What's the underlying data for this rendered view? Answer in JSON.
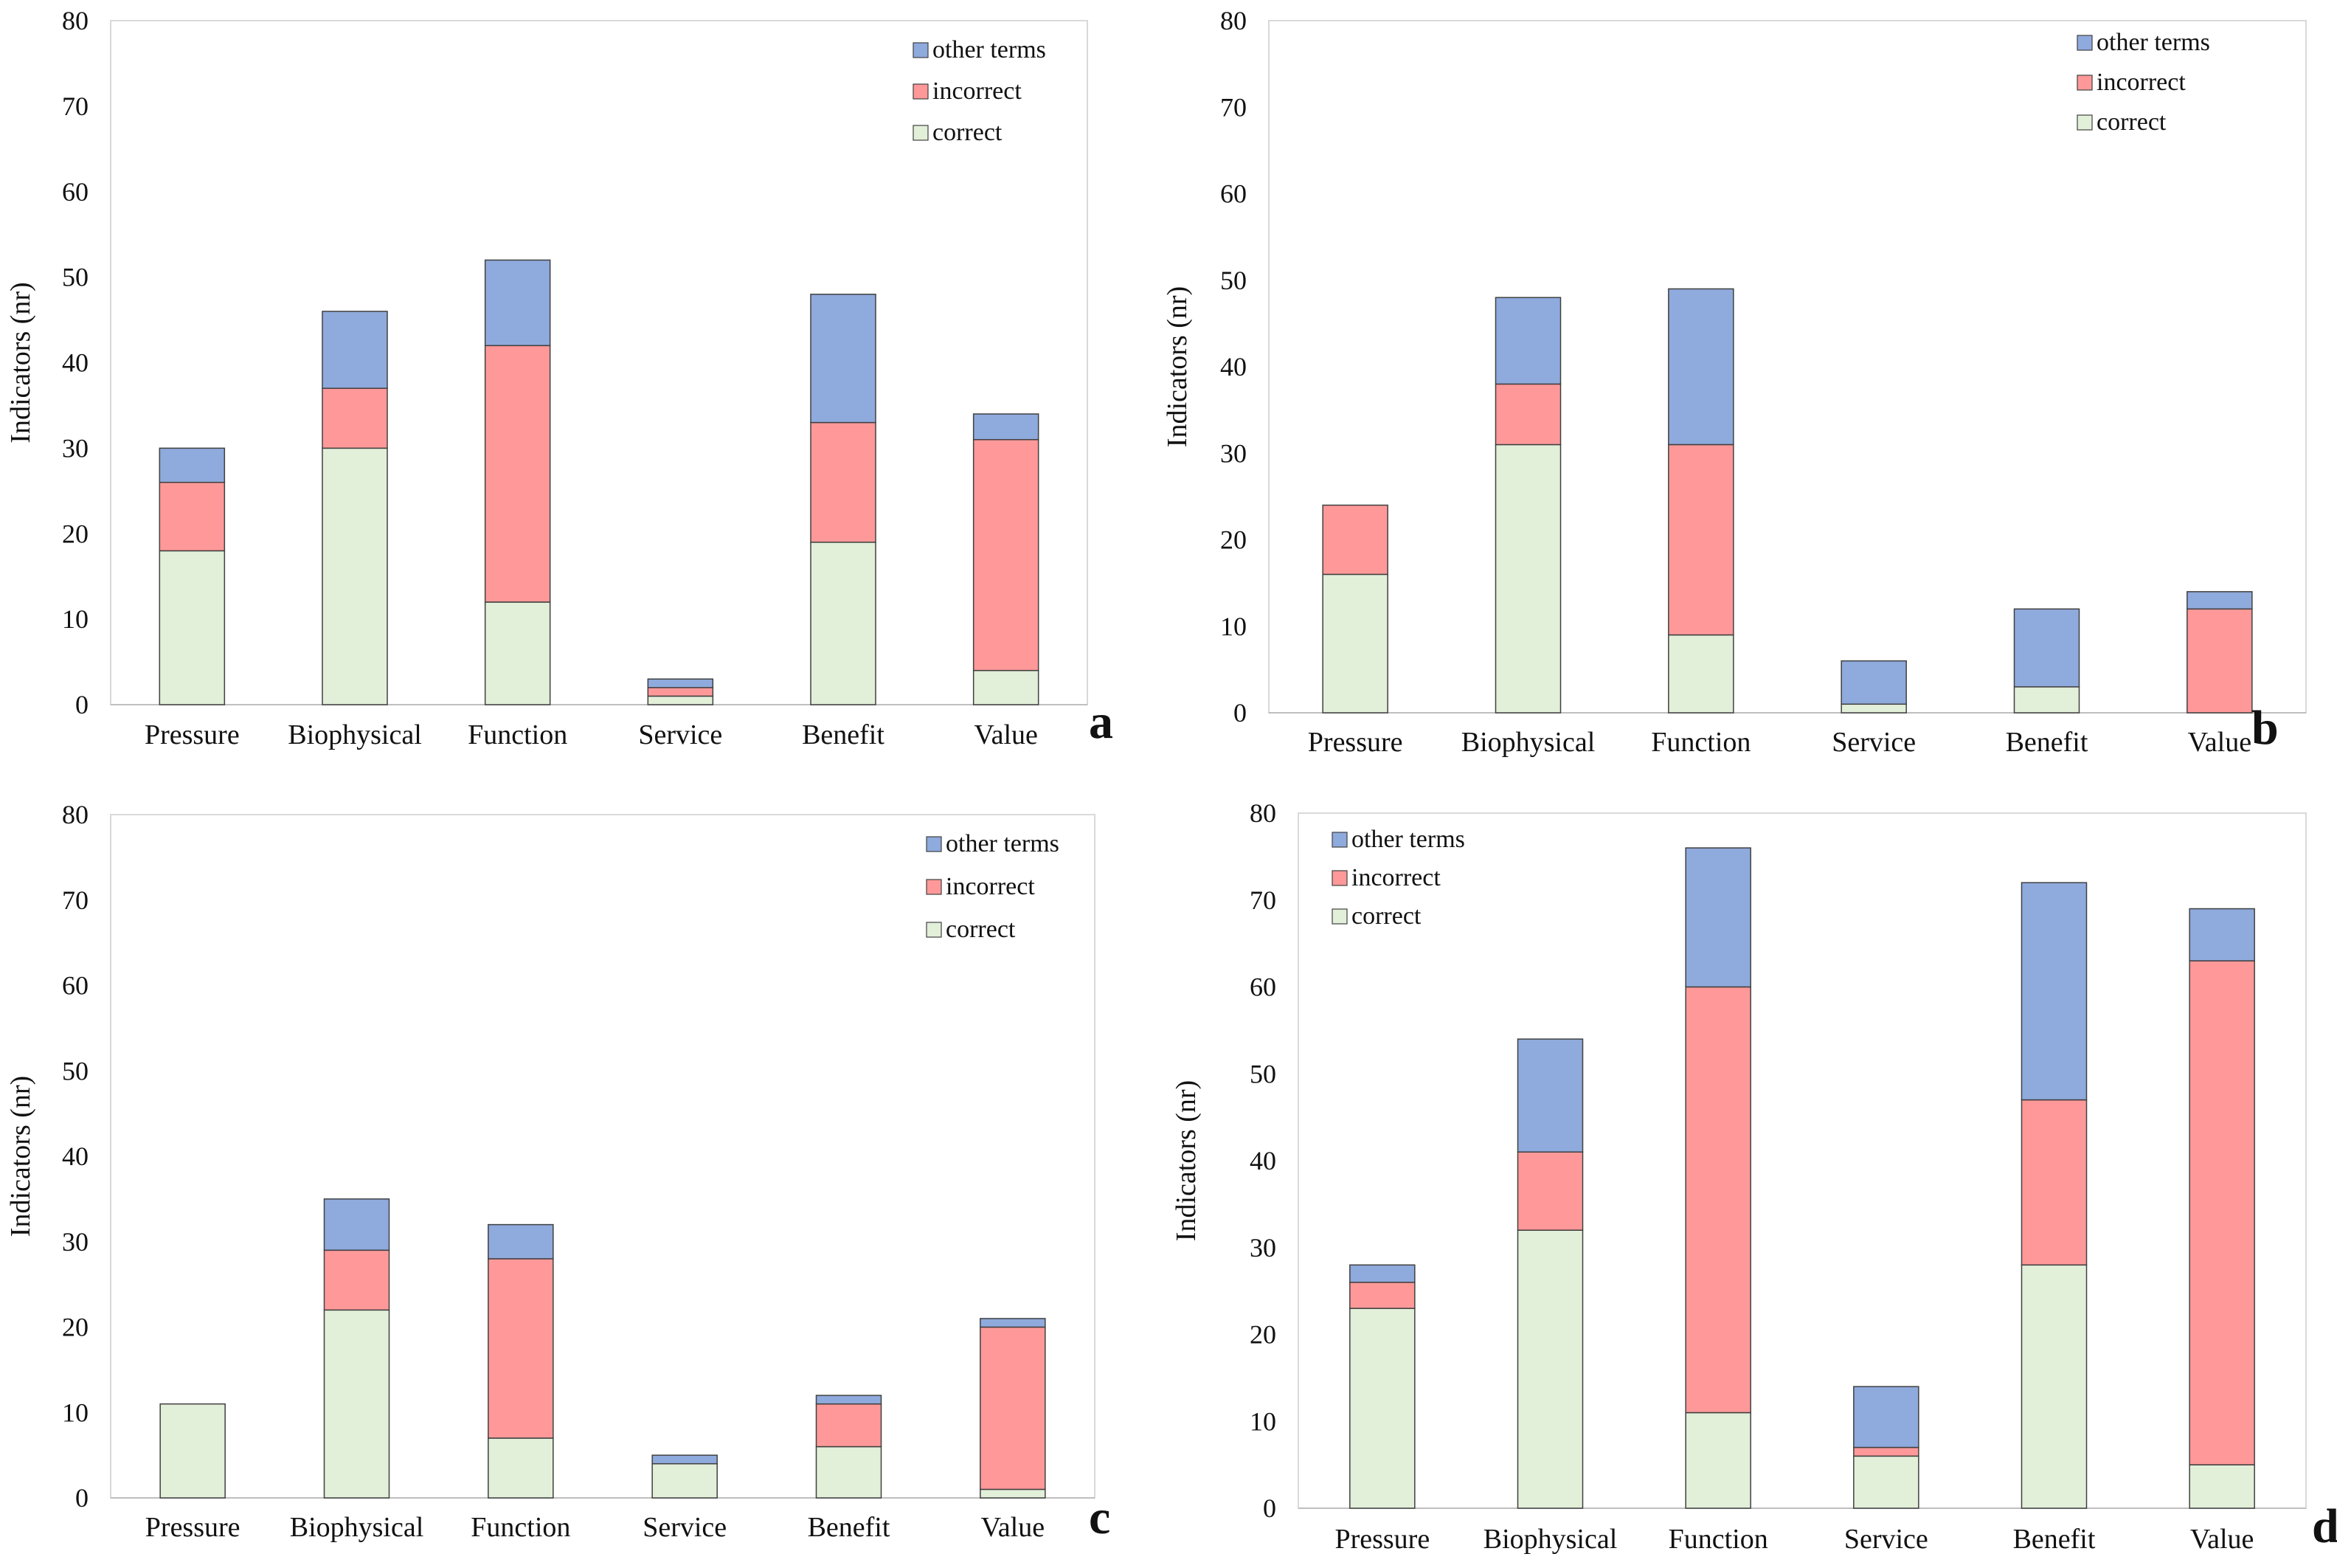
{
  "chart_data": [
    {
      "panel_label": "a",
      "type": "bar",
      "stacked": true,
      "categories": [
        "Pressure",
        "Biophysical",
        "Function",
        "Service",
        "Benefit",
        "Value"
      ],
      "series": [
        {
          "name": "correct",
          "color": "#e2efd9",
          "values": [
            18,
            30,
            12,
            1,
            19,
            4
          ]
        },
        {
          "name": "incorrect",
          "color": "#ff9999",
          "values": [
            8,
            7,
            30,
            1,
            14,
            27
          ]
        },
        {
          "name": "other terms",
          "color": "#8faadc",
          "values": [
            4,
            9,
            10,
            1,
            15,
            3
          ]
        }
      ],
      "ylabel": "Indicators (nr)",
      "ylim": [
        0,
        80
      ],
      "yticks": [
        "0",
        "10",
        "20",
        "30",
        "40",
        "50",
        "60",
        "70",
        "80"
      ],
      "legend": [
        "other terms",
        "incorrect",
        "correct"
      ],
      "legend_position": "top-right",
      "grid": false
    },
    {
      "panel_label": "b",
      "type": "bar",
      "stacked": true,
      "categories": [
        "Pressure",
        "Biophysical",
        "Function",
        "Service",
        "Benefit",
        "Value"
      ],
      "series": [
        {
          "name": "correct",
          "color": "#e2efd9",
          "values": [
            16,
            31,
            9,
            1,
            3,
            0
          ]
        },
        {
          "name": "incorrect",
          "color": "#ff9999",
          "values": [
            8,
            7,
            22,
            0,
            0,
            12
          ]
        },
        {
          "name": "other terms",
          "color": "#8faadc",
          "values": [
            0,
            10,
            18,
            5,
            9,
            2
          ]
        }
      ],
      "ylabel": "Indicators (nr)",
      "ylim": [
        0,
        80
      ],
      "yticks": [
        "0",
        "10",
        "20",
        "30",
        "40",
        "50",
        "60",
        "70",
        "80"
      ],
      "legend": [
        "other terms",
        "incorrect",
        "correct"
      ],
      "legend_position": "top-right",
      "grid": false
    },
    {
      "panel_label": "c",
      "type": "bar",
      "stacked": true,
      "categories": [
        "Pressure",
        "Biophysical",
        "Function",
        "Service",
        "Benefit",
        "Value"
      ],
      "series": [
        {
          "name": "correct",
          "color": "#e2efd9",
          "values": [
            11,
            22,
            7,
            4,
            6,
            1
          ]
        },
        {
          "name": "incorrect",
          "color": "#ff9999",
          "values": [
            0,
            7,
            21,
            0,
            5,
            19
          ]
        },
        {
          "name": "other terms",
          "color": "#8faadc",
          "values": [
            0,
            6,
            4,
            1,
            1,
            1
          ]
        }
      ],
      "ylabel": "Indicators (nr)",
      "ylim": [
        0,
        80
      ],
      "yticks": [
        "0",
        "10",
        "20",
        "30",
        "40",
        "50",
        "60",
        "70",
        "80"
      ],
      "legend": [
        "other terms",
        "incorrect",
        "correct"
      ],
      "legend_position": "top-right",
      "grid": false
    },
    {
      "panel_label": "d",
      "type": "bar",
      "stacked": true,
      "categories": [
        "Pressure",
        "Biophysical",
        "Function",
        "Service",
        "Benefit",
        "Value"
      ],
      "series": [
        {
          "name": "correct",
          "color": "#e2efd9",
          "values": [
            23,
            32,
            11,
            6,
            28,
            5
          ]
        },
        {
          "name": "incorrect",
          "color": "#ff9999",
          "values": [
            3,
            9,
            49,
            1,
            19,
            58
          ]
        },
        {
          "name": "other terms",
          "color": "#8faadc",
          "values": [
            2,
            13,
            16,
            7,
            25,
            6
          ]
        }
      ],
      "ylabel": "Indicators (nr)",
      "ylim": [
        0,
        80
      ],
      "yticks": [
        "0",
        "10",
        "20",
        "30",
        "40",
        "50",
        "60",
        "70",
        "80"
      ],
      "legend": [
        "other terms",
        "incorrect",
        "correct"
      ],
      "legend_position": "top-left",
      "grid": false
    }
  ]
}
